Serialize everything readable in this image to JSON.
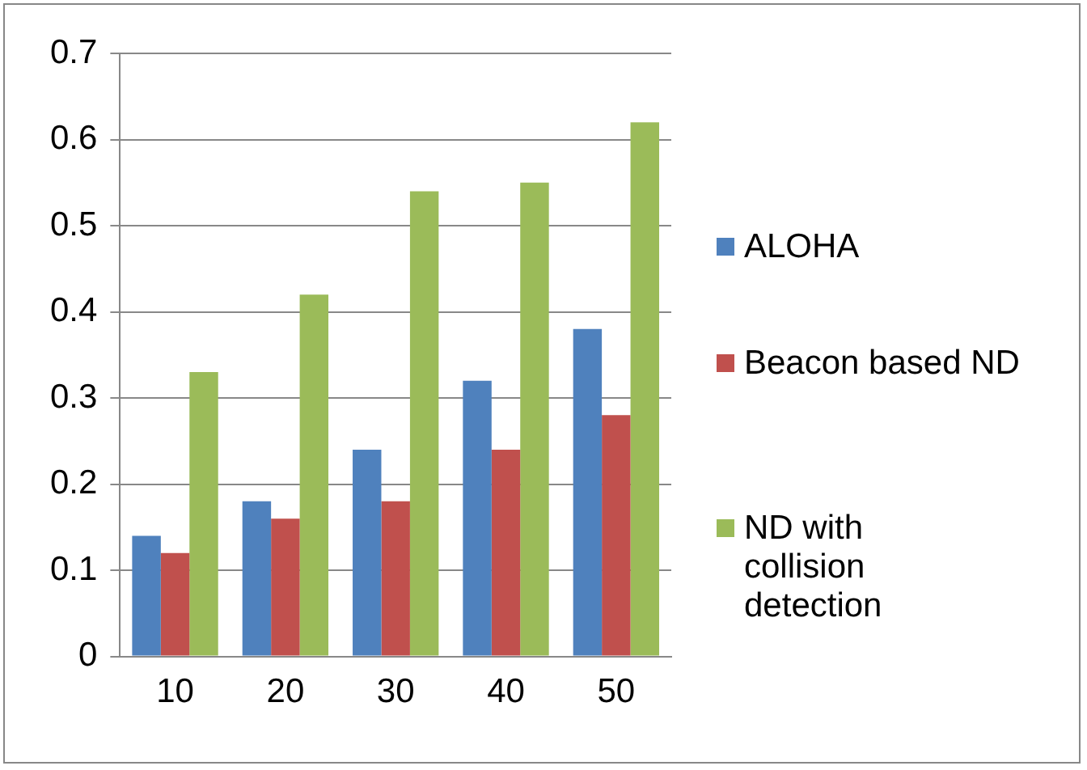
{
  "chart_data": {
    "type": "bar",
    "categories": [
      "10",
      "20",
      "30",
      "40",
      "50"
    ],
    "series": [
      {
        "name": "ALOHA",
        "color": "#4f81bd",
        "values": [
          0.14,
          0.18,
          0.24,
          0.32,
          0.38
        ]
      },
      {
        "name": "Beacon based ND",
        "color": "#c0504d",
        "values": [
          0.12,
          0.16,
          0.18,
          0.24,
          0.28
        ]
      },
      {
        "name": "ND with collision detection",
        "color": "#9bbb59",
        "values": [
          0.33,
          0.42,
          0.54,
          0.55,
          0.62
        ]
      }
    ],
    "ylim": [
      0,
      0.7
    ],
    "yticks": [
      0,
      0.1,
      0.2,
      0.3,
      0.4,
      0.5,
      0.6,
      0.7
    ],
    "grid": "y",
    "legend": "right"
  }
}
